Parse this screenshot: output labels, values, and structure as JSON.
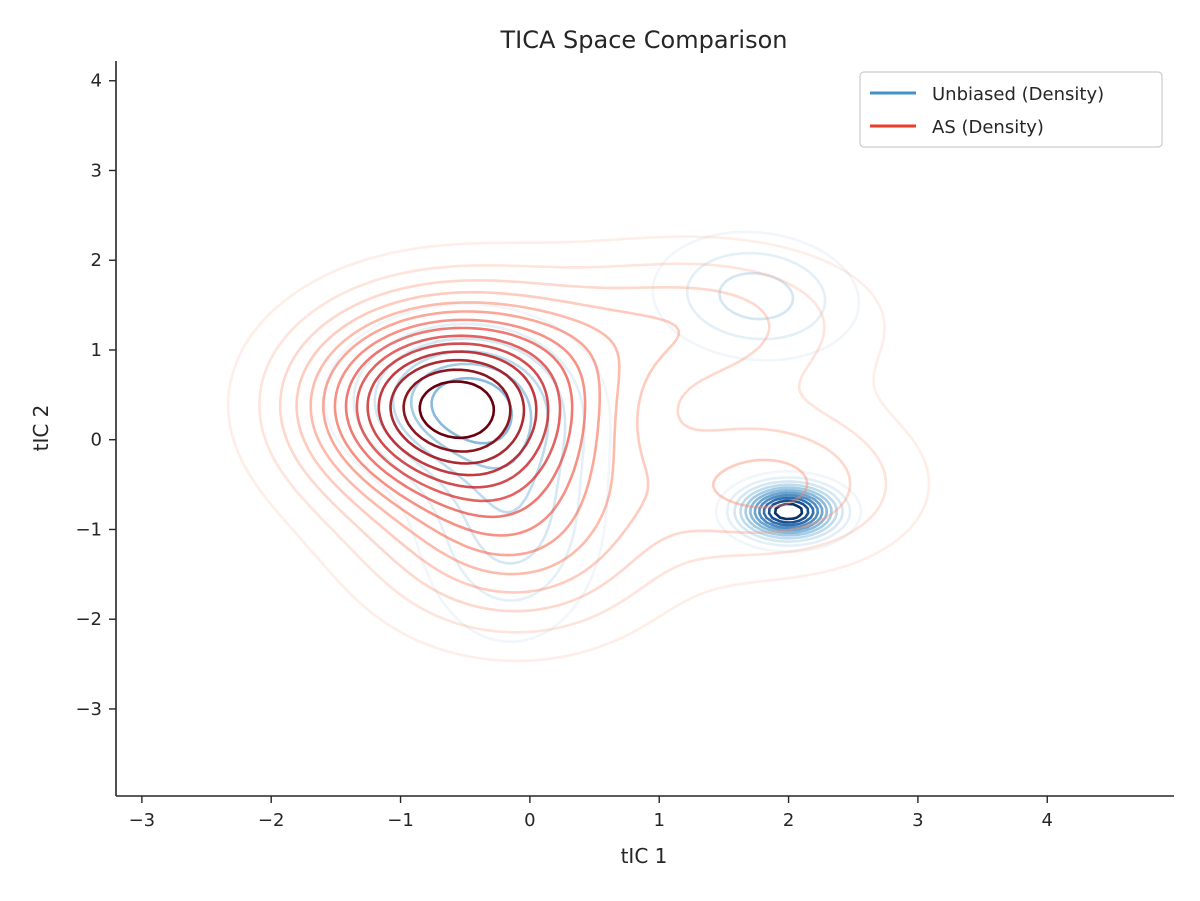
{
  "chart_data": {
    "type": "contour",
    "title": "TICA Space Comparison",
    "xlabel": "tIC 1",
    "ylabel": "tIC 2",
    "xlim": [
      -3.2,
      4.98
    ],
    "ylim": [
      -3.97,
      4.22
    ],
    "xticks": [
      -3,
      -2,
      -1,
      0,
      1,
      2,
      3,
      4
    ],
    "yticks": [
      -3,
      -2,
      -1,
      0,
      1,
      2,
      3,
      4
    ],
    "x_tick_labels": [
      "−3",
      "−2",
      "−1",
      "0",
      "1",
      "2",
      "3",
      "4"
    ],
    "y_tick_labels": [
      "−3",
      "−2",
      "−1",
      "0",
      "1",
      "2",
      "3",
      "4"
    ],
    "grid": false,
    "legend_position": "top-right",
    "legend": [
      {
        "label": "Unbiased (Density)",
        "color": "#4292c6"
      },
      {
        "label": "AS (Density)",
        "color": "#ef3b2c"
      }
    ],
    "series": [
      {
        "name": "Unbiased (Density)",
        "colormap": "Blues",
        "levels": 11,
        "components": [
          {
            "weight": 0.38,
            "mean": [
              -0.55,
              0.45
            ],
            "std": [
              0.55,
              0.55
            ],
            "rho": 0.0
          },
          {
            "weight": 0.32,
            "mean": [
              -0.15,
              -0.8
            ],
            "std": [
              0.45,
              0.9
            ],
            "rho": 0.0
          },
          {
            "weight": 0.17,
            "mean": [
              1.75,
              1.6
            ],
            "std": [
              0.5,
              0.45
            ],
            "rho": -0.1
          },
          {
            "weight": 0.13,
            "mean": [
              2.0,
              -0.8
            ],
            "std": [
              0.25,
              0.2
            ],
            "rho": 0.0
          }
        ]
      },
      {
        "name": "AS (Density)",
        "colormap": "Reds",
        "levels": 14,
        "components": [
          {
            "weight": 0.55,
            "mean": [
              -0.6,
              0.4
            ],
            "std": [
              0.75,
              0.75
            ],
            "rho": 0.0
          },
          {
            "weight": 0.2,
            "mean": [
              -0.1,
              -1.1
            ],
            "std": [
              0.75,
              0.75
            ],
            "rho": 0.0
          },
          {
            "weight": 0.13,
            "mean": [
              1.3,
              1.3
            ],
            "std": [
              0.9,
              0.6
            ],
            "rho": 0.0
          },
          {
            "weight": 0.12,
            "mean": [
              1.9,
              -0.5
            ],
            "std": [
              0.7,
              0.6
            ],
            "rho": 0.0
          }
        ]
      }
    ]
  }
}
